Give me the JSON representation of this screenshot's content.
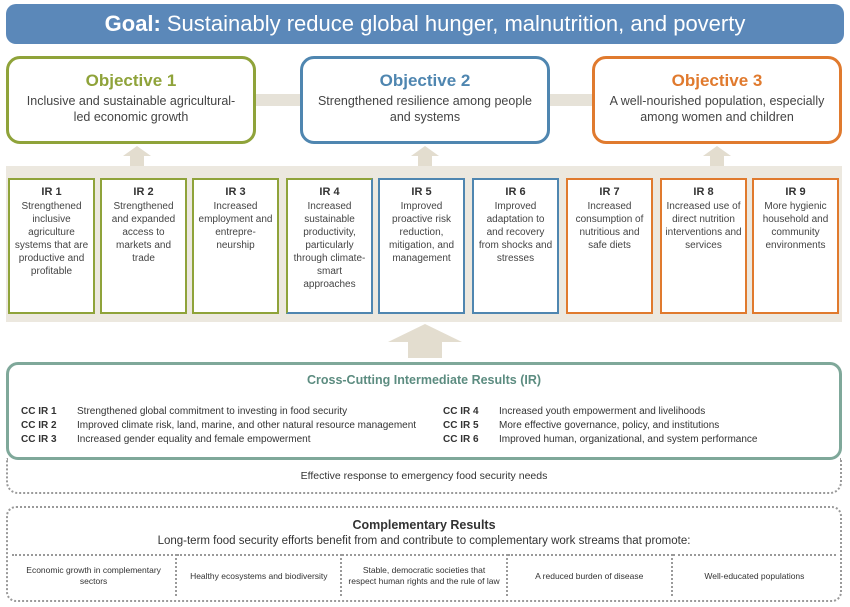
{
  "goal": {
    "label": "Goal:",
    "text": "Sustainably reduce global hunger, malnutrition, and poverty"
  },
  "colors": {
    "goal_bg": "#5b88b9",
    "obj1": "#8fa33a",
    "obj2": "#4f86b0",
    "obj3": "#e07a2e",
    "cross_cutting": "#7fa89a",
    "arrow": "#e3ddcf"
  },
  "objectives": [
    {
      "title": "Objective 1",
      "desc": "Inclusive and sustainable agricultural-led economic growth"
    },
    {
      "title": "Objective 2",
      "desc": "Strengthened resilience among people and systems"
    },
    {
      "title": "Objective 3",
      "desc": "A well-nourished population, especially among women and children"
    }
  ],
  "irs": [
    {
      "num": "IR 1",
      "text": "Strengthened inclusive agriculture systems that are productive and profitable"
    },
    {
      "num": "IR 2",
      "text": "Strengthened and expanded access to markets and trade"
    },
    {
      "num": "IR 3",
      "text": "Increased employment and entrepre-neurship"
    },
    {
      "num": "IR 4",
      "text": "Increased sustainable productivity, particularly through climate-smart approaches"
    },
    {
      "num": "IR 5",
      "text": "Improved proactive risk reduction, mitigation, and management"
    },
    {
      "num": "IR 6",
      "text": "Improved adaptation to and recovery from shocks and stresses"
    },
    {
      "num": "IR 7",
      "text": "Increased consumption of nutritious and safe diets"
    },
    {
      "num": "IR 8",
      "text": "Increased use of direct nutrition interventions and services"
    },
    {
      "num": "IR 9",
      "text": "More hygienic household and community environments"
    }
  ],
  "cross_cutting": {
    "title": "Cross-Cutting Intermediate Results (IR)",
    "items": [
      {
        "code": "CC IR 1",
        "text": "Strengthened global commitment to investing in food security"
      },
      {
        "code": "CC IR 2",
        "text": "Improved climate risk, land, marine, and other natural resource management"
      },
      {
        "code": "CC IR 3",
        "text": "Increased gender equality and female empowerment"
      },
      {
        "code": "CC IR 4",
        "text": "Increased youth empowerment and livelihoods"
      },
      {
        "code": "CC IR 5",
        "text": "More effective governance, policy, and institutions"
      },
      {
        "code": "CC IR 6",
        "text": "Improved human, organizational, and system performance"
      }
    ]
  },
  "emergency": "Effective response to emergency food security needs",
  "complementary": {
    "title": "Complementary Results",
    "subtitle": "Long-term food security efforts benefit from and contribute to complementary work streams that promote:",
    "items": [
      "Economic growth in complementary sectors",
      "Healthy ecosystems and biodiversity",
      "Stable, democratic societies that respect human rights and the rule of law",
      "A reduced burden of disease",
      "Well-educated populations"
    ]
  }
}
